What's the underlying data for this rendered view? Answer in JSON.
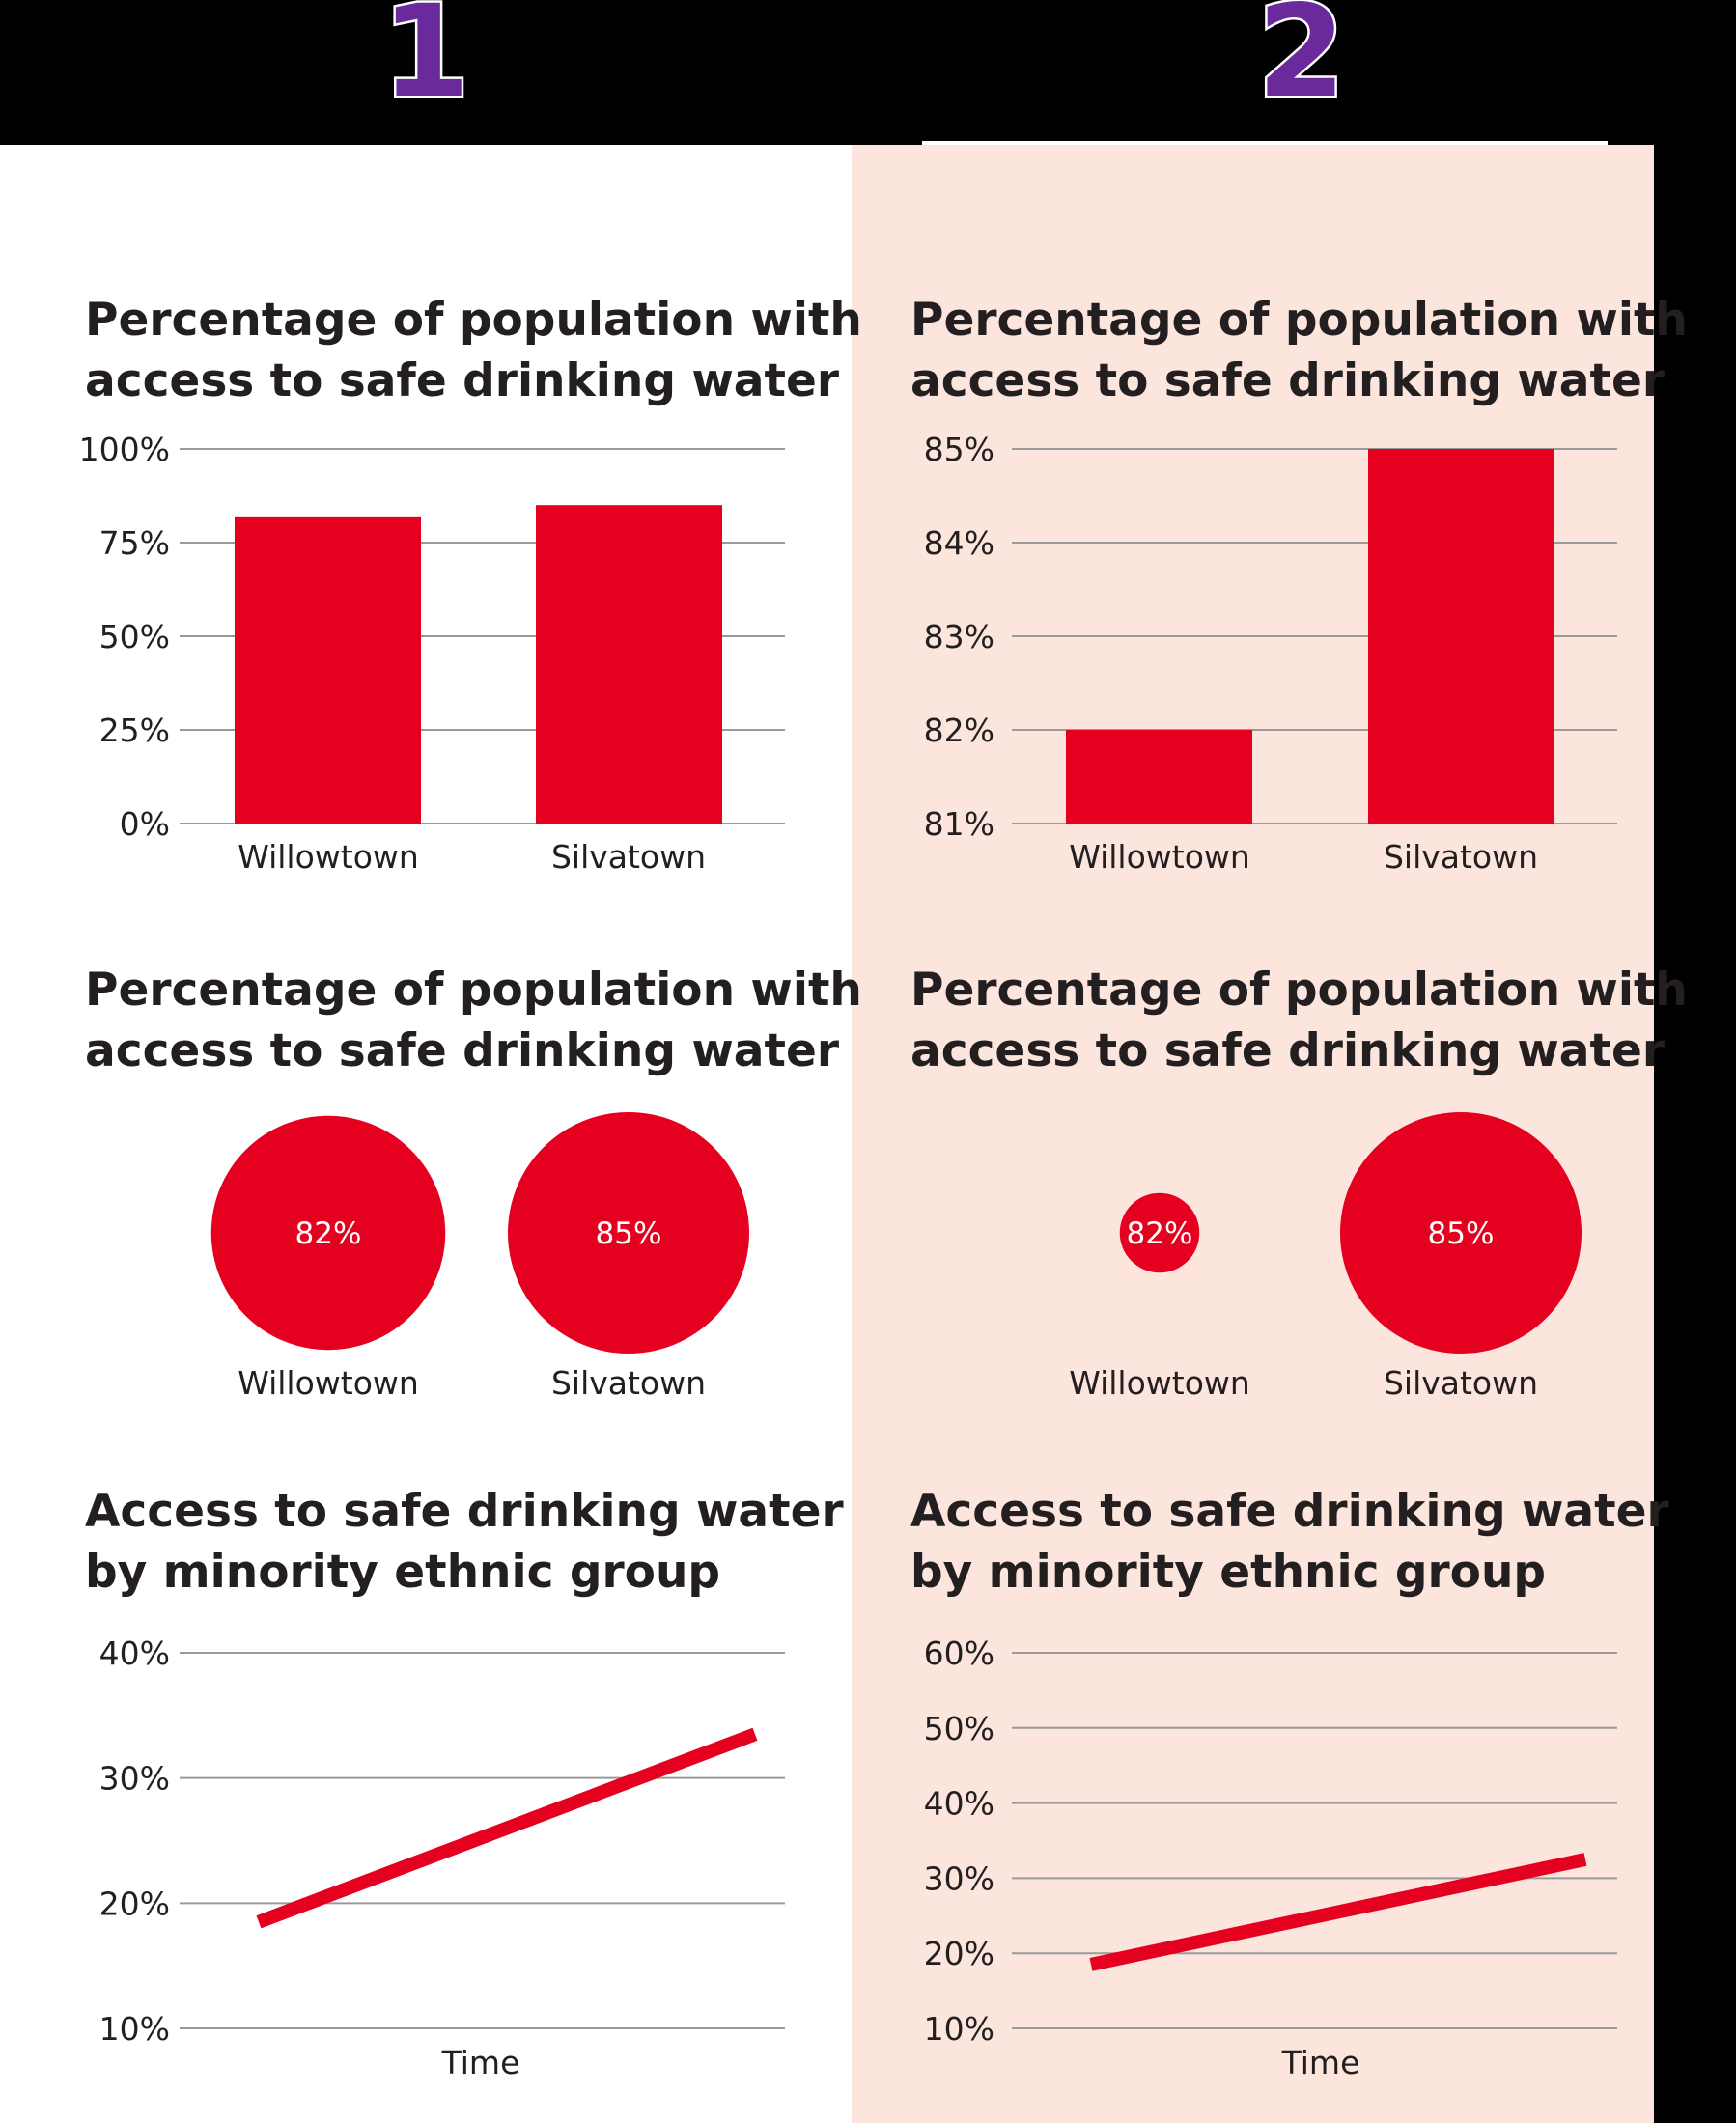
{
  "header": {
    "left_number": "1",
    "right_number": "2"
  },
  "colors": {
    "bar": "#e60020",
    "panel_background": "#fbe5dc",
    "number_purple": "#6a2a9c"
  },
  "chart_data": [
    {
      "type": "bar",
      "panel": "1",
      "title_lines": [
        "Percentage of population with",
        "access to safe drinking water"
      ],
      "categories": [
        "Willowtown",
        "Silvatown"
      ],
      "values": [
        82,
        85
      ],
      "yticks": [
        0,
        25,
        50,
        75,
        100
      ],
      "ytick_labels": [
        "0%",
        "25%",
        "50%",
        "75%",
        "100%"
      ],
      "ylim": [
        0,
        100
      ],
      "grid": true
    },
    {
      "type": "bar",
      "panel": "2",
      "title_lines": [
        "Percentage of population with",
        "access to safe drinking water"
      ],
      "categories": [
        "Willowtown",
        "Silvatown"
      ],
      "values": [
        82,
        85
      ],
      "yticks": [
        81,
        82,
        83,
        84,
        85
      ],
      "ytick_labels": [
        "81%",
        "82%",
        "83%",
        "84%",
        "85%"
      ],
      "ylim": [
        81,
        85
      ],
      "grid": true
    },
    {
      "type": "bubble",
      "panel": "1",
      "title_lines": [
        "Percentage of population with",
        "access to safe drinking water"
      ],
      "categories": [
        "Willowtown",
        "Silvatown"
      ],
      "values": [
        82,
        85
      ],
      "data_labels": [
        "82%",
        "85%"
      ],
      "relative_size": [
        0.97,
        1.0
      ]
    },
    {
      "type": "bubble",
      "panel": "2",
      "title_lines": [
        "Percentage of population with",
        "access to safe drinking water"
      ],
      "categories": [
        "Willowtown",
        "Silvatown"
      ],
      "values": [
        82,
        85
      ],
      "data_labels": [
        "82%",
        "85%"
      ],
      "relative_size": [
        0.33,
        1.0
      ]
    },
    {
      "type": "line",
      "panel": "1",
      "title_lines": [
        "Access to safe drinking water",
        "by minority ethnic group"
      ],
      "xlabel": "Time",
      "x": [
        0,
        1
      ],
      "values": [
        18.5,
        33.5
      ],
      "yticks": [
        10,
        20,
        30,
        40
      ],
      "ytick_labels": [
        "10%",
        "20%",
        "30%",
        "40%"
      ],
      "ylim": [
        10,
        40
      ],
      "grid": true
    },
    {
      "type": "line",
      "panel": "2",
      "title_lines": [
        "Access to safe drinking water",
        "by minority ethnic group"
      ],
      "xlabel": "Time",
      "x": [
        0,
        1
      ],
      "values": [
        18.5,
        32.5
      ],
      "yticks": [
        10,
        20,
        30,
        40,
        50,
        60
      ],
      "ytick_labels": [
        "10%",
        "20%",
        "30%",
        "40%",
        "50%",
        "60%"
      ],
      "ylim": [
        10,
        60
      ],
      "grid": true
    }
  ]
}
